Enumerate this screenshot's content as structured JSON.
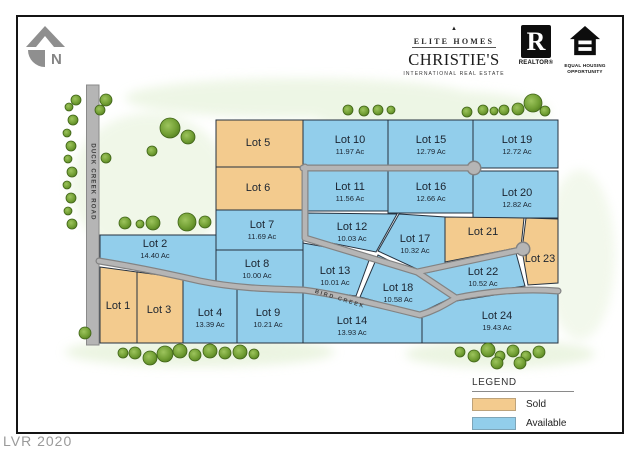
{
  "watermark": "LVR 2020",
  "compass": {
    "label": "N"
  },
  "branding": {
    "elite_homes": "ELITE HOMES",
    "christies": "CHRISTIE'S",
    "christies_tagline": "INTERNATIONAL REAL ESTATE",
    "realtor_r": "R",
    "realtor_label": "REALTOR®",
    "equal_housing_line1": "EQUAL HOUSING",
    "equal_housing_line2": "OPPORTUNITY"
  },
  "legend": {
    "title": "LEGEND",
    "items": [
      {
        "label": "Sold",
        "status": "sold",
        "color": "#F3CB8E"
      },
      {
        "label": "Available",
        "status": "available",
        "color": "#92CEEB"
      }
    ]
  },
  "map": {
    "road_labels": {
      "duck_creek_road": "DUCK CREEK ROAD",
      "bird_creek": "BIRD CREEK"
    },
    "status_colors": {
      "sold": "#F3CB8E",
      "available": "#92CEEB"
    },
    "lot_border_color": "#25313F",
    "lots": [
      {
        "num": 1,
        "name": "Lot 1",
        "acreage": "",
        "status": "sold"
      },
      {
        "num": 2,
        "name": "Lot 2",
        "acreage": "14.40 Ac",
        "status": "available"
      },
      {
        "num": 3,
        "name": "Lot 3",
        "acreage": "",
        "status": "sold"
      },
      {
        "num": 4,
        "name": "Lot 4",
        "acreage": "13.39 Ac",
        "status": "available"
      },
      {
        "num": 5,
        "name": "Lot 5",
        "acreage": "",
        "status": "sold"
      },
      {
        "num": 6,
        "name": "Lot 6",
        "acreage": "",
        "status": "sold"
      },
      {
        "num": 7,
        "name": "Lot 7",
        "acreage": "11.69 Ac",
        "status": "available"
      },
      {
        "num": 8,
        "name": "Lot 8",
        "acreage": "10.00 Ac",
        "status": "available"
      },
      {
        "num": 9,
        "name": "Lot 9",
        "acreage": "10.21 Ac",
        "status": "available"
      },
      {
        "num": 10,
        "name": "Lot 10",
        "acreage": "11.97 Ac",
        "status": "available"
      },
      {
        "num": 11,
        "name": "Lot 11",
        "acreage": "11.56 Ac",
        "status": "available"
      },
      {
        "num": 12,
        "name": "Lot 12",
        "acreage": "10.03 Ac",
        "status": "available"
      },
      {
        "num": 13,
        "name": "Lot 13",
        "acreage": "10.01 Ac",
        "status": "available"
      },
      {
        "num": 14,
        "name": "Lot 14",
        "acreage": "13.93 Ac",
        "status": "available"
      },
      {
        "num": 15,
        "name": "Lot 15",
        "acreage": "12.79 Ac",
        "status": "available"
      },
      {
        "num": 16,
        "name": "Lot 16",
        "acreage": "12.66 Ac",
        "status": "available"
      },
      {
        "num": 17,
        "name": "Lot 17",
        "acreage": "10.32 Ac",
        "status": "available"
      },
      {
        "num": 18,
        "name": "Lot 18",
        "acreage": "10.58 Ac",
        "status": "available"
      },
      {
        "num": 19,
        "name": "Lot 19",
        "acreage": "12.72 Ac",
        "status": "available"
      },
      {
        "num": 20,
        "name": "Lot 20",
        "acreage": "12.82 Ac",
        "status": "available"
      },
      {
        "num": 21,
        "name": "Lot 21",
        "acreage": "",
        "status": "sold"
      },
      {
        "num": 22,
        "name": "Lot 22",
        "acreage": "10.52 Ac",
        "status": "available"
      },
      {
        "num": 23,
        "name": "Lot 23",
        "acreage": "",
        "status": "sold"
      },
      {
        "num": 24,
        "name": "Lot 24",
        "acreage": "19.43 Ac",
        "status": "available"
      }
    ]
  }
}
